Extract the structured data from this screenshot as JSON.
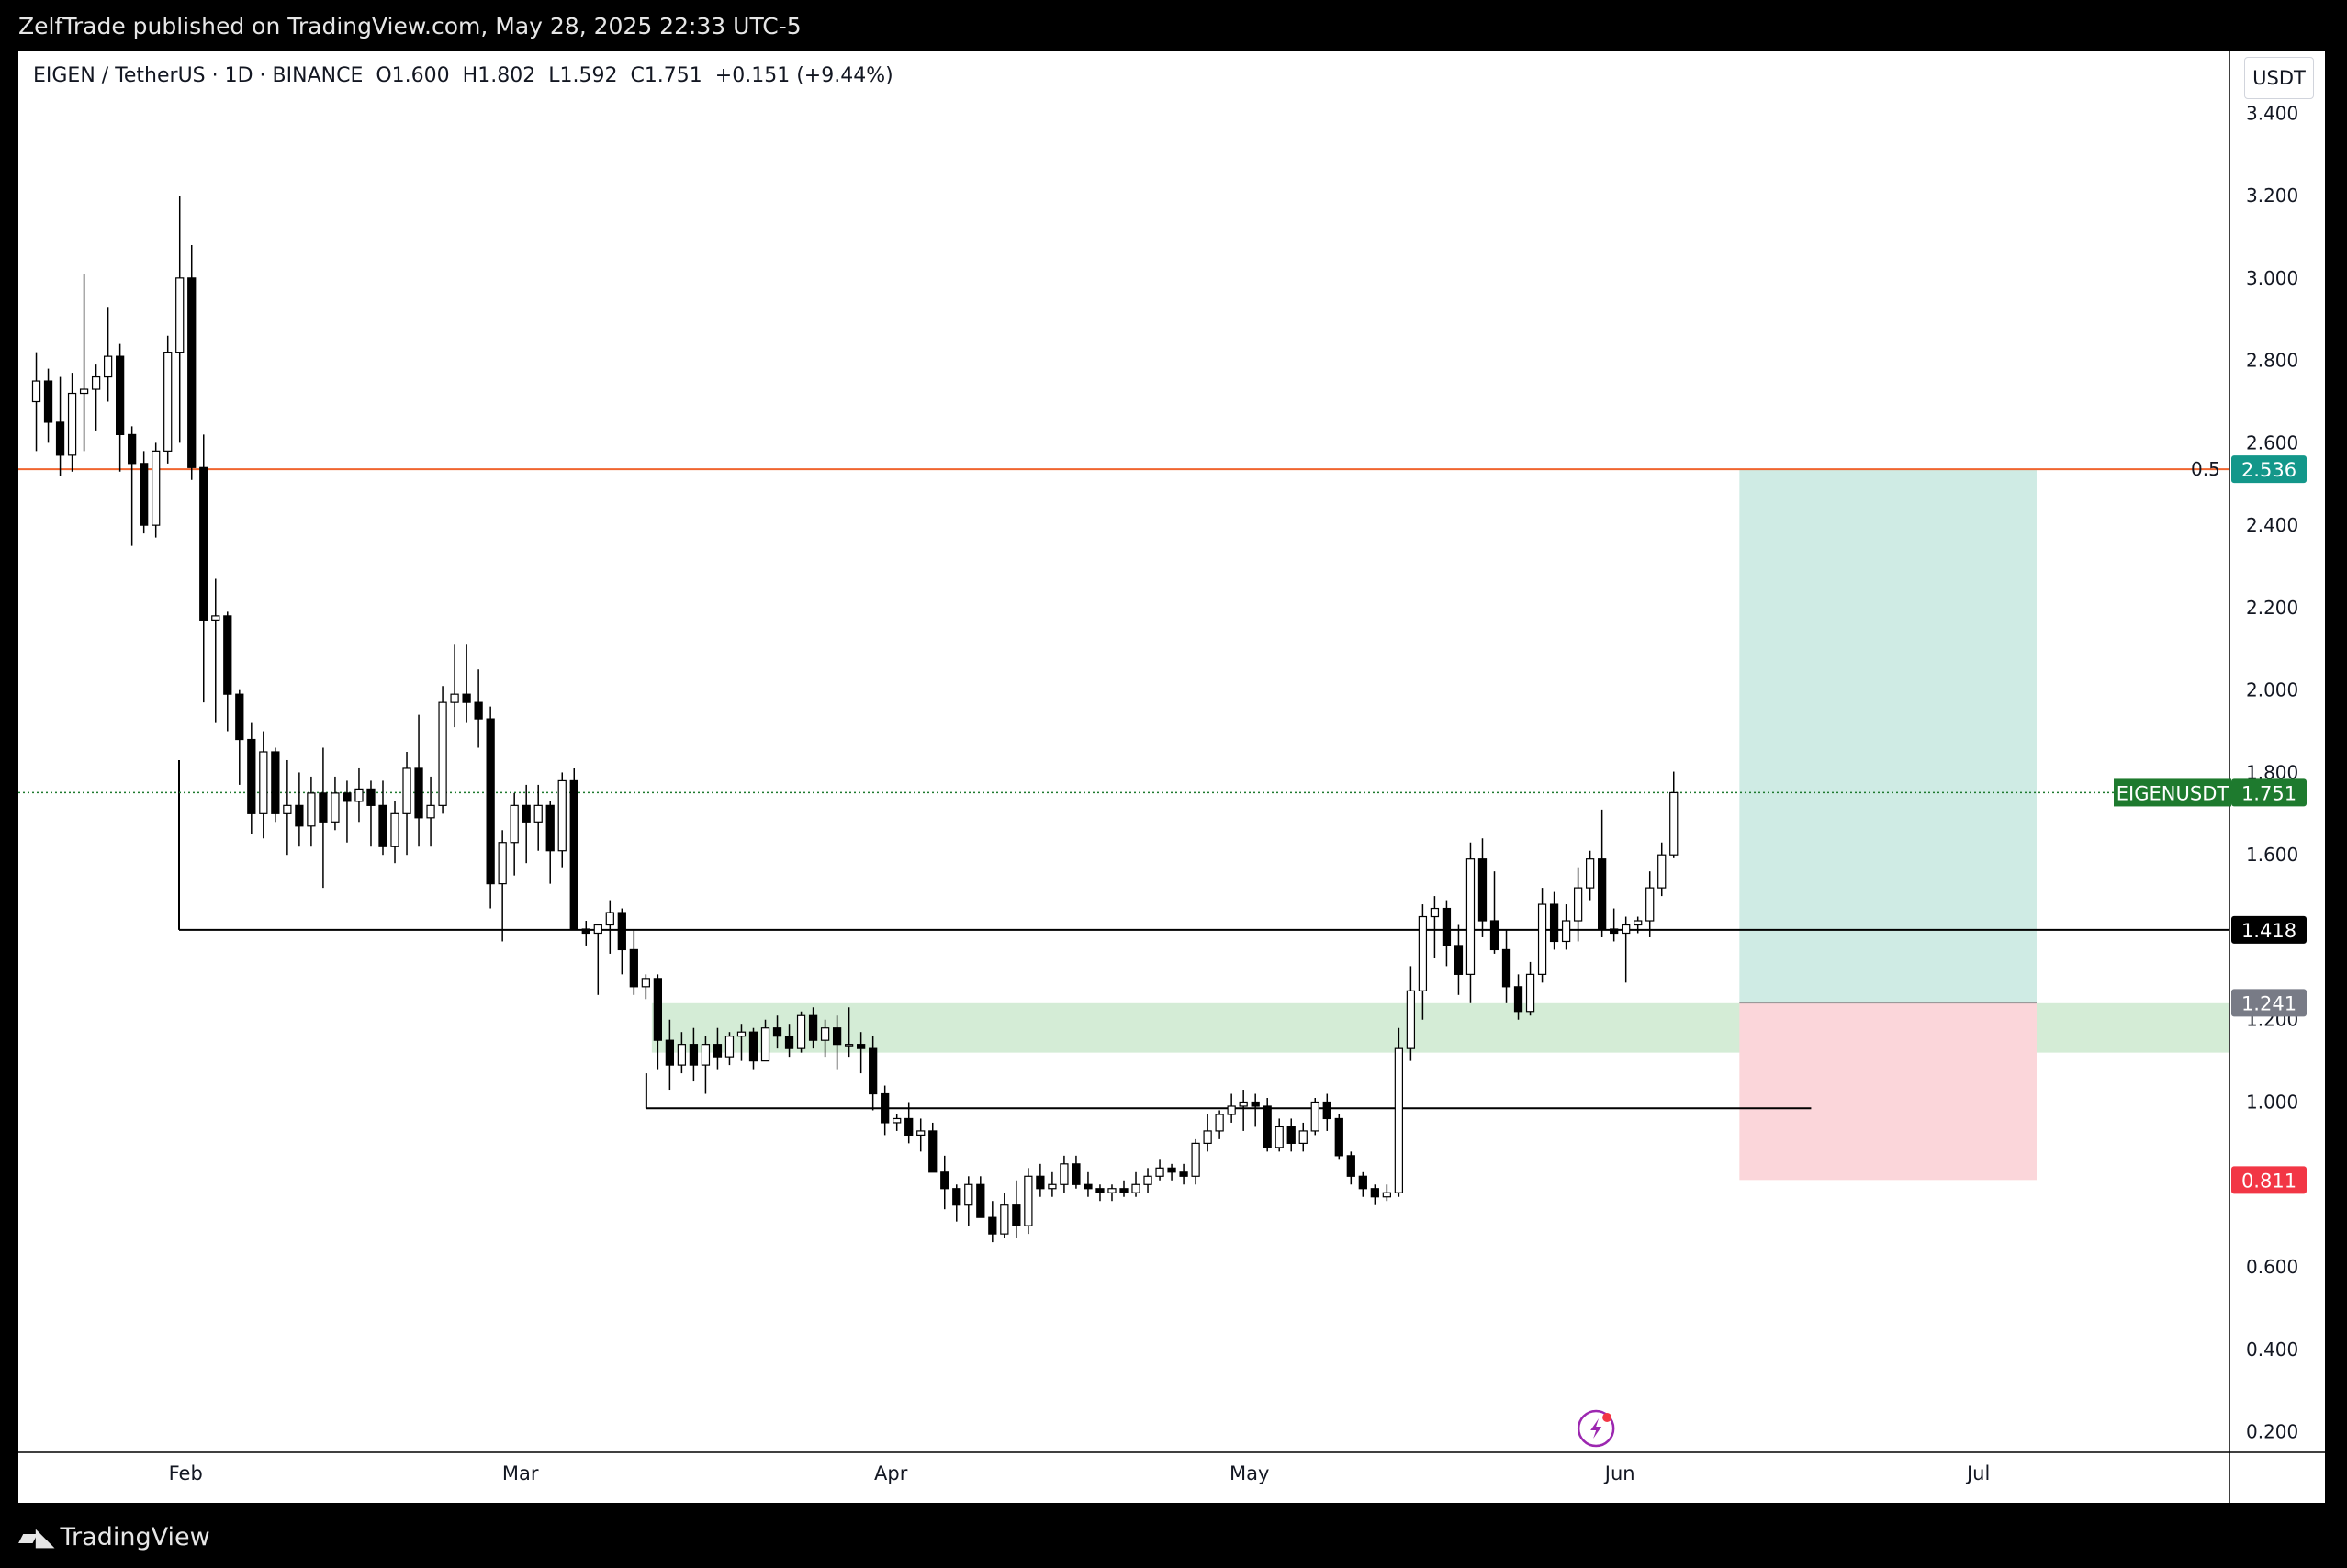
{
  "publisher": "ZelfTrade published on TradingView.com, May 28, 2025 22:33 UTC-5",
  "legend": {
    "pair": "EIGEN / TetherUS · 1D · BINANCE",
    "open": "O1.600",
    "high": "H1.802",
    "low": "L1.592",
    "close": "C1.751",
    "change": "+0.151 (+9.44%)"
  },
  "currency_button": "USDT",
  "brand": "TradingView",
  "colors": {
    "up": "#ffffff",
    "down": "#000000",
    "fib": "#f0652f",
    "profit": "#cfebe4",
    "loss": "#fbd6da",
    "zone": "#d4ecd6",
    "last": "#1e7a2e",
    "target": "#13978a",
    "stop": "#f23645",
    "entry": "#787b86"
  },
  "chart_data": {
    "type": "candlestick",
    "title": "EIGEN / TetherUS · 1D · BINANCE",
    "ylabel": "USDT",
    "ylim": [
      0.15,
      3.55
    ],
    "y_ticks": [
      "3.400",
      "3.200",
      "3.000",
      "2.800",
      "2.600",
      "2.400",
      "2.200",
      "2.000",
      "1.800",
      "1.600",
      "1.200",
      "1.000",
      "0.600",
      "0.400",
      "0.200"
    ],
    "x_ticks": [
      {
        "label": "Feb",
        "date": "2025-02-01"
      },
      {
        "label": "Mar",
        "date": "2025-03-01"
      },
      {
        "label": "Apr",
        "date": "2025-04-01"
      },
      {
        "label": "May",
        "date": "2025-05-01"
      },
      {
        "label": "Jun",
        "date": "2025-06-01"
      },
      {
        "label": "Jul",
        "date": "2025-07-01"
      }
    ],
    "xlim": [
      "2025-01-18",
      "2025-07-22"
    ],
    "candles": [
      {
        "date": "2025-01-19",
        "o": 2.7,
        "h": 2.82,
        "l": 2.58,
        "c": 2.75
      },
      {
        "date": "2025-01-20",
        "o": 2.75,
        "h": 2.78,
        "l": 2.6,
        "c": 2.65
      },
      {
        "date": "2025-01-21",
        "o": 2.65,
        "h": 2.76,
        "l": 2.52,
        "c": 2.57
      },
      {
        "date": "2025-01-22",
        "o": 2.57,
        "h": 2.77,
        "l": 2.53,
        "c": 2.72
      },
      {
        "date": "2025-01-23",
        "o": 2.72,
        "h": 3.01,
        "l": 2.58,
        "c": 2.73
      },
      {
        "date": "2025-01-24",
        "o": 2.73,
        "h": 2.79,
        "l": 2.63,
        "c": 2.76
      },
      {
        "date": "2025-01-25",
        "o": 2.76,
        "h": 2.93,
        "l": 2.7,
        "c": 2.81
      },
      {
        "date": "2025-01-26",
        "o": 2.81,
        "h": 2.84,
        "l": 2.53,
        "c": 2.62
      },
      {
        "date": "2025-01-27",
        "o": 2.62,
        "h": 2.64,
        "l": 2.35,
        "c": 2.55
      },
      {
        "date": "2025-01-28",
        "o": 2.55,
        "h": 2.58,
        "l": 2.38,
        "c": 2.4
      },
      {
        "date": "2025-01-29",
        "o": 2.4,
        "h": 2.6,
        "l": 2.37,
        "c": 2.58
      },
      {
        "date": "2025-01-30",
        "o": 2.58,
        "h": 2.86,
        "l": 2.55,
        "c": 2.82
      },
      {
        "date": "2025-01-31",
        "o": 2.82,
        "h": 3.2,
        "l": 2.6,
        "c": 3.0
      },
      {
        "date": "2025-02-01",
        "o": 3.0,
        "h": 3.08,
        "l": 2.51,
        "c": 2.54
      },
      {
        "date": "2025-02-02",
        "o": 2.54,
        "h": 2.62,
        "l": 1.97,
        "c": 2.17
      },
      {
        "date": "2025-02-03",
        "o": 2.17,
        "h": 2.27,
        "l": 1.92,
        "c": 2.18
      },
      {
        "date": "2025-02-04",
        "o": 2.18,
        "h": 2.19,
        "l": 1.9,
        "c": 1.99
      },
      {
        "date": "2025-02-05",
        "o": 1.99,
        "h": 2.0,
        "l": 1.77,
        "c": 1.88
      },
      {
        "date": "2025-02-06",
        "o": 1.88,
        "h": 1.92,
        "l": 1.65,
        "c": 1.7
      },
      {
        "date": "2025-02-07",
        "o": 1.7,
        "h": 1.9,
        "l": 1.64,
        "c": 1.85
      },
      {
        "date": "2025-02-08",
        "o": 1.85,
        "h": 1.86,
        "l": 1.68,
        "c": 1.7
      },
      {
        "date": "2025-02-09",
        "o": 1.7,
        "h": 1.83,
        "l": 1.6,
        "c": 1.72
      },
      {
        "date": "2025-02-10",
        "o": 1.72,
        "h": 1.8,
        "l": 1.62,
        "c": 1.67
      },
      {
        "date": "2025-02-11",
        "o": 1.67,
        "h": 1.79,
        "l": 1.62,
        "c": 1.75
      },
      {
        "date": "2025-02-12",
        "o": 1.75,
        "h": 1.86,
        "l": 1.52,
        "c": 1.68
      },
      {
        "date": "2025-02-13",
        "o": 1.68,
        "h": 1.79,
        "l": 1.66,
        "c": 1.75
      },
      {
        "date": "2025-02-14",
        "o": 1.75,
        "h": 1.78,
        "l": 1.63,
        "c": 1.73
      },
      {
        "date": "2025-02-15",
        "o": 1.73,
        "h": 1.81,
        "l": 1.68,
        "c": 1.76
      },
      {
        "date": "2025-02-16",
        "o": 1.76,
        "h": 1.78,
        "l": 1.62,
        "c": 1.72
      },
      {
        "date": "2025-02-17",
        "o": 1.72,
        "h": 1.78,
        "l": 1.6,
        "c": 1.62
      },
      {
        "date": "2025-02-18",
        "o": 1.62,
        "h": 1.73,
        "l": 1.58,
        "c": 1.7
      },
      {
        "date": "2025-02-19",
        "o": 1.7,
        "h": 1.85,
        "l": 1.6,
        "c": 1.81
      },
      {
        "date": "2025-02-20",
        "o": 1.81,
        "h": 1.94,
        "l": 1.62,
        "c": 1.69
      },
      {
        "date": "2025-02-21",
        "o": 1.69,
        "h": 1.79,
        "l": 1.62,
        "c": 1.72
      },
      {
        "date": "2025-02-22",
        "o": 1.72,
        "h": 2.01,
        "l": 1.7,
        "c": 1.97
      },
      {
        "date": "2025-02-23",
        "o": 1.97,
        "h": 2.11,
        "l": 1.91,
        "c": 1.99
      },
      {
        "date": "2025-02-24",
        "o": 1.99,
        "h": 2.11,
        "l": 1.92,
        "c": 1.97
      },
      {
        "date": "2025-02-25",
        "o": 1.97,
        "h": 2.05,
        "l": 1.86,
        "c": 1.93
      },
      {
        "date": "2025-02-26",
        "o": 1.93,
        "h": 1.96,
        "l": 1.47,
        "c": 1.53
      },
      {
        "date": "2025-02-27",
        "o": 1.53,
        "h": 1.66,
        "l": 1.39,
        "c": 1.63
      },
      {
        "date": "2025-02-28",
        "o": 1.63,
        "h": 1.75,
        "l": 1.55,
        "c": 1.72
      },
      {
        "date": "2025-03-01",
        "o": 1.72,
        "h": 1.77,
        "l": 1.58,
        "c": 1.68
      },
      {
        "date": "2025-03-02",
        "o": 1.68,
        "h": 1.77,
        "l": 1.61,
        "c": 1.72
      },
      {
        "date": "2025-03-03",
        "o": 1.72,
        "h": 1.73,
        "l": 1.53,
        "c": 1.61
      },
      {
        "date": "2025-03-04",
        "o": 1.61,
        "h": 1.8,
        "l": 1.57,
        "c": 1.78
      },
      {
        "date": "2025-03-05",
        "o": 1.78,
        "h": 1.81,
        "l": 1.42,
        "c": 1.42
      },
      {
        "date": "2025-03-06",
        "o": 1.42,
        "h": 1.44,
        "l": 1.38,
        "c": 1.41
      },
      {
        "date": "2025-03-07",
        "o": 1.41,
        "h": 1.43,
        "l": 1.26,
        "c": 1.43
      },
      {
        "date": "2025-03-08",
        "o": 1.43,
        "h": 1.49,
        "l": 1.36,
        "c": 1.46
      },
      {
        "date": "2025-03-09",
        "o": 1.46,
        "h": 1.47,
        "l": 1.31,
        "c": 1.37
      },
      {
        "date": "2025-03-10",
        "o": 1.37,
        "h": 1.42,
        "l": 1.26,
        "c": 1.28
      },
      {
        "date": "2025-03-11",
        "o": 1.28,
        "h": 1.31,
        "l": 1.25,
        "c": 1.3
      },
      {
        "date": "2025-03-12",
        "o": 1.3,
        "h": 1.31,
        "l": 1.08,
        "c": 1.15
      },
      {
        "date": "2025-03-13",
        "o": 1.15,
        "h": 1.2,
        "l": 1.03,
        "c": 1.09
      },
      {
        "date": "2025-03-14",
        "o": 1.09,
        "h": 1.17,
        "l": 1.07,
        "c": 1.14
      },
      {
        "date": "2025-03-15",
        "o": 1.14,
        "h": 1.18,
        "l": 1.05,
        "c": 1.09
      },
      {
        "date": "2025-03-16",
        "o": 1.09,
        "h": 1.16,
        "l": 1.02,
        "c": 1.14
      },
      {
        "date": "2025-03-17",
        "o": 1.14,
        "h": 1.18,
        "l": 1.08,
        "c": 1.11
      },
      {
        "date": "2025-03-18",
        "o": 1.11,
        "h": 1.17,
        "l": 1.09,
        "c": 1.16
      },
      {
        "date": "2025-03-19",
        "o": 1.16,
        "h": 1.19,
        "l": 1.1,
        "c": 1.17
      },
      {
        "date": "2025-03-20",
        "o": 1.17,
        "h": 1.18,
        "l": 1.08,
        "c": 1.1
      },
      {
        "date": "2025-03-21",
        "o": 1.1,
        "h": 1.2,
        "l": 1.1,
        "c": 1.18
      },
      {
        "date": "2025-03-22",
        "o": 1.18,
        "h": 1.21,
        "l": 1.13,
        "c": 1.16
      },
      {
        "date": "2025-03-23",
        "o": 1.16,
        "h": 1.19,
        "l": 1.11,
        "c": 1.13
      },
      {
        "date": "2025-03-24",
        "o": 1.13,
        "h": 1.22,
        "l": 1.12,
        "c": 1.21
      },
      {
        "date": "2025-03-25",
        "o": 1.21,
        "h": 1.23,
        "l": 1.13,
        "c": 1.15
      },
      {
        "date": "2025-03-26",
        "o": 1.15,
        "h": 1.2,
        "l": 1.11,
        "c": 1.18
      },
      {
        "date": "2025-03-27",
        "o": 1.18,
        "h": 1.21,
        "l": 1.08,
        "c": 1.14
      },
      {
        "date": "2025-03-28",
        "o": 1.14,
        "h": 1.23,
        "l": 1.11,
        "c": 1.14
      },
      {
        "date": "2025-03-29",
        "o": 1.14,
        "h": 1.17,
        "l": 1.07,
        "c": 1.13
      },
      {
        "date": "2025-03-30",
        "o": 1.13,
        "h": 1.16,
        "l": 0.98,
        "c": 1.02
      },
      {
        "date": "2025-03-31",
        "o": 1.02,
        "h": 1.04,
        "l": 0.92,
        "c": 0.95
      },
      {
        "date": "2025-04-01",
        "o": 0.95,
        "h": 0.97,
        "l": 0.93,
        "c": 0.96
      },
      {
        "date": "2025-04-02",
        "o": 0.96,
        "h": 1.0,
        "l": 0.9,
        "c": 0.92
      },
      {
        "date": "2025-04-03",
        "o": 0.92,
        "h": 0.96,
        "l": 0.88,
        "c": 0.93
      },
      {
        "date": "2025-04-04",
        "o": 0.93,
        "h": 0.95,
        "l": 0.83,
        "c": 0.83
      },
      {
        "date": "2025-04-05",
        "o": 0.83,
        "h": 0.87,
        "l": 0.74,
        "c": 0.79
      },
      {
        "date": "2025-04-06",
        "o": 0.79,
        "h": 0.8,
        "l": 0.71,
        "c": 0.75
      },
      {
        "date": "2025-04-07",
        "o": 0.75,
        "h": 0.82,
        "l": 0.7,
        "c": 0.8
      },
      {
        "date": "2025-04-08",
        "o": 0.8,
        "h": 0.82,
        "l": 0.72,
        "c": 0.72
      },
      {
        "date": "2025-04-09",
        "o": 0.72,
        "h": 0.76,
        "l": 0.66,
        "c": 0.68
      },
      {
        "date": "2025-04-10",
        "o": 0.68,
        "h": 0.78,
        "l": 0.67,
        "c": 0.75
      },
      {
        "date": "2025-04-11",
        "o": 0.75,
        "h": 0.81,
        "l": 0.67,
        "c": 0.7
      },
      {
        "date": "2025-04-12",
        "o": 0.7,
        "h": 0.84,
        "l": 0.68,
        "c": 0.82
      },
      {
        "date": "2025-04-13",
        "o": 0.82,
        "h": 0.85,
        "l": 0.77,
        "c": 0.79
      },
      {
        "date": "2025-04-14",
        "o": 0.79,
        "h": 0.83,
        "l": 0.77,
        "c": 0.8
      },
      {
        "date": "2025-04-15",
        "o": 0.8,
        "h": 0.87,
        "l": 0.78,
        "c": 0.85
      },
      {
        "date": "2025-04-16",
        "o": 0.85,
        "h": 0.87,
        "l": 0.79,
        "c": 0.8
      },
      {
        "date": "2025-04-17",
        "o": 0.8,
        "h": 0.83,
        "l": 0.77,
        "c": 0.79
      },
      {
        "date": "2025-04-18",
        "o": 0.79,
        "h": 0.8,
        "l": 0.76,
        "c": 0.78
      },
      {
        "date": "2025-04-19",
        "o": 0.78,
        "h": 0.8,
        "l": 0.76,
        "c": 0.79
      },
      {
        "date": "2025-04-20",
        "o": 0.79,
        "h": 0.81,
        "l": 0.77,
        "c": 0.78
      },
      {
        "date": "2025-04-21",
        "o": 0.78,
        "h": 0.83,
        "l": 0.77,
        "c": 0.8
      },
      {
        "date": "2025-04-22",
        "o": 0.8,
        "h": 0.84,
        "l": 0.78,
        "c": 0.82
      },
      {
        "date": "2025-04-23",
        "o": 0.82,
        "h": 0.86,
        "l": 0.81,
        "c": 0.84
      },
      {
        "date": "2025-04-24",
        "o": 0.84,
        "h": 0.85,
        "l": 0.81,
        "c": 0.83
      },
      {
        "date": "2025-04-25",
        "o": 0.83,
        "h": 0.85,
        "l": 0.8,
        "c": 0.82
      },
      {
        "date": "2025-04-26",
        "o": 0.82,
        "h": 0.91,
        "l": 0.8,
        "c": 0.9
      },
      {
        "date": "2025-04-27",
        "o": 0.9,
        "h": 0.97,
        "l": 0.88,
        "c": 0.93
      },
      {
        "date": "2025-04-28",
        "o": 0.93,
        "h": 0.98,
        "l": 0.91,
        "c": 0.97
      },
      {
        "date": "2025-04-29",
        "o": 0.97,
        "h": 1.02,
        "l": 0.95,
        "c": 0.99
      },
      {
        "date": "2025-04-30",
        "o": 0.99,
        "h": 1.03,
        "l": 0.93,
        "c": 1.0
      },
      {
        "date": "2025-05-01",
        "o": 1.0,
        "h": 1.02,
        "l": 0.94,
        "c": 0.99
      },
      {
        "date": "2025-05-02",
        "o": 0.99,
        "h": 1.01,
        "l": 0.88,
        "c": 0.89
      },
      {
        "date": "2025-05-03",
        "o": 0.89,
        "h": 0.96,
        "l": 0.88,
        "c": 0.94
      },
      {
        "date": "2025-05-04",
        "o": 0.94,
        "h": 0.96,
        "l": 0.88,
        "c": 0.9
      },
      {
        "date": "2025-05-05",
        "o": 0.9,
        "h": 0.95,
        "l": 0.88,
        "c": 0.93
      },
      {
        "date": "2025-05-06",
        "o": 0.93,
        "h": 1.01,
        "l": 0.92,
        "c": 1.0
      },
      {
        "date": "2025-05-07",
        "o": 1.0,
        "h": 1.02,
        "l": 0.93,
        "c": 0.96
      },
      {
        "date": "2025-05-08",
        "o": 0.96,
        "h": 0.97,
        "l": 0.86,
        "c": 0.87
      },
      {
        "date": "2025-05-09",
        "o": 0.87,
        "h": 0.88,
        "l": 0.8,
        "c": 0.82
      },
      {
        "date": "2025-05-10",
        "o": 0.82,
        "h": 0.83,
        "l": 0.77,
        "c": 0.79
      },
      {
        "date": "2025-05-11",
        "o": 0.79,
        "h": 0.8,
        "l": 0.75,
        "c": 0.77
      },
      {
        "date": "2025-05-12",
        "o": 0.77,
        "h": 0.8,
        "l": 0.76,
        "c": 0.78
      },
      {
        "date": "2025-05-13",
        "o": 0.78,
        "h": 1.18,
        "l": 0.77,
        "c": 1.13
      },
      {
        "date": "2025-05-14",
        "o": 1.13,
        "h": 1.33,
        "l": 1.1,
        "c": 1.27
      },
      {
        "date": "2025-05-15",
        "o": 1.27,
        "h": 1.48,
        "l": 1.2,
        "c": 1.45
      },
      {
        "date": "2025-05-16",
        "o": 1.45,
        "h": 1.5,
        "l": 1.35,
        "c": 1.47
      },
      {
        "date": "2025-05-17",
        "o": 1.47,
        "h": 1.49,
        "l": 1.33,
        "c": 1.38
      },
      {
        "date": "2025-05-18",
        "o": 1.38,
        "h": 1.43,
        "l": 1.26,
        "c": 1.31
      },
      {
        "date": "2025-05-19",
        "o": 1.31,
        "h": 1.63,
        "l": 1.24,
        "c": 1.59
      },
      {
        "date": "2025-05-20",
        "o": 1.59,
        "h": 1.64,
        "l": 1.4,
        "c": 1.44
      },
      {
        "date": "2025-05-21",
        "o": 1.44,
        "h": 1.56,
        "l": 1.36,
        "c": 1.37
      },
      {
        "date": "2025-05-22",
        "o": 1.37,
        "h": 1.42,
        "l": 1.24,
        "c": 1.28
      },
      {
        "date": "2025-05-23",
        "o": 1.28,
        "h": 1.31,
        "l": 1.2,
        "c": 1.22
      },
      {
        "date": "2025-05-24",
        "o": 1.22,
        "h": 1.34,
        "l": 1.21,
        "c": 1.31
      },
      {
        "date": "2025-05-25",
        "o": 1.31,
        "h": 1.52,
        "l": 1.29,
        "c": 1.48
      },
      {
        "date": "2025-05-26",
        "o": 1.48,
        "h": 1.51,
        "l": 1.37,
        "c": 1.39
      },
      {
        "date": "2025-05-27",
        "o": 1.39,
        "h": 1.48,
        "l": 1.37,
        "c": 1.44
      },
      {
        "date": "2025-05-28",
        "o": 1.44,
        "h": 1.57,
        "l": 1.39,
        "c": 1.52
      },
      {
        "date": "2025-05-29",
        "o": 1.52,
        "h": 1.61,
        "l": 1.49,
        "c": 1.59
      },
      {
        "date": "2025-05-30",
        "o": 1.59,
        "h": 1.71,
        "l": 1.4,
        "c": 1.42
      },
      {
        "date": "2025-05-31",
        "o": 1.42,
        "h": 1.47,
        "l": 1.39,
        "c": 1.41
      },
      {
        "date": "2025-06-01",
        "o": 1.41,
        "h": 1.45,
        "l": 1.29,
        "c": 1.43
      },
      {
        "date": "2025-06-02",
        "o": 1.43,
        "h": 1.45,
        "l": 1.41,
        "c": 1.44
      },
      {
        "date": "2025-06-03",
        "o": 1.44,
        "h": 1.56,
        "l": 1.4,
        "c": 1.52
      },
      {
        "date": "2025-06-04",
        "o": 1.52,
        "h": 1.63,
        "l": 1.5,
        "c": 1.6
      },
      {
        "date": "2025-06-05",
        "o": 1.6,
        "h": 1.802,
        "l": 1.592,
        "c": 1.751
      }
    ],
    "levels": [
      {
        "name": "fib-0.5",
        "label": "0.5",
        "value": 2.536,
        "badge": "2.536"
      },
      {
        "name": "last-price",
        "label": "EIGENUSDT",
        "value": 1.751,
        "badge": "1.751"
      },
      {
        "name": "resistance",
        "value": 1.418,
        "badge": "1.418"
      },
      {
        "name": "entry",
        "value": 1.241,
        "badge": "1.241"
      },
      {
        "name": "stop",
        "value": 0.811,
        "badge": "0.811"
      },
      {
        "name": "lower-support",
        "value": 0.985
      }
    ],
    "demand_zone": {
      "from_date": "2025-03-12",
      "low": 1.12,
      "high": 1.24
    },
    "position": {
      "type": "long",
      "from_date": "2025-06-11",
      "to_date": "2025-07-22",
      "entry": 1.241,
      "target": 2.536,
      "stop": 0.811
    }
  }
}
